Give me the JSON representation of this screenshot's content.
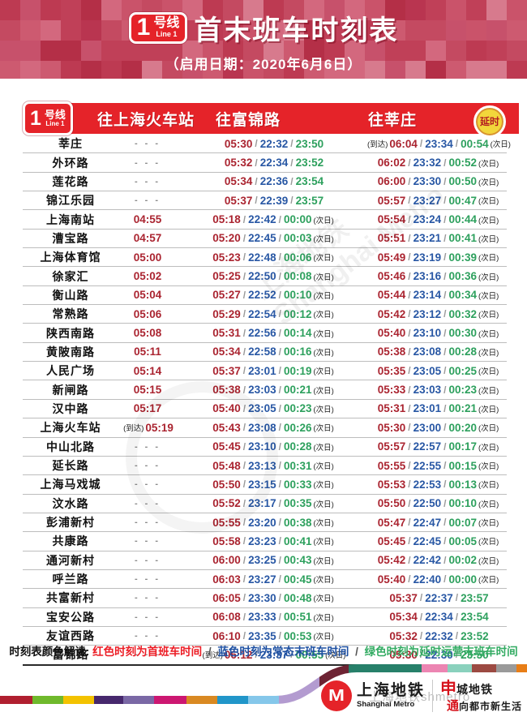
{
  "banner": {
    "line_number": "1",
    "line_suffix": "号线",
    "line_en": "Line 1",
    "title": "首末班车时刻表",
    "subtitle": "（启用日期：2020年6月6日）"
  },
  "table": {
    "directions": [
      "往上海火车站",
      "往富锦路",
      "往莘庄"
    ],
    "delay_badge": "延时",
    "arrive_label": "(到达)",
    "next_day_label": "(次日)",
    "dash": "- - -",
    "slash": "/",
    "rows": [
      {
        "station": "莘庄",
        "c1": null,
        "c2": {
          "t": [
            "05:30",
            "22:32",
            "23:50"
          ],
          "next": false
        },
        "c3": {
          "arrive": true,
          "t": [
            "06:04",
            "23:34",
            "00:54"
          ],
          "next": true
        }
      },
      {
        "station": "外环路",
        "c1": null,
        "c2": {
          "t": [
            "05:32",
            "22:34",
            "23:52"
          ],
          "next": false
        },
        "c3": {
          "t": [
            "06:02",
            "23:32",
            "00:52"
          ],
          "next": true
        }
      },
      {
        "station": "莲花路",
        "c1": null,
        "c2": {
          "t": [
            "05:34",
            "22:36",
            "23:54"
          ],
          "next": false
        },
        "c3": {
          "t": [
            "06:00",
            "23:30",
            "00:50"
          ],
          "next": true
        }
      },
      {
        "station": "锦江乐园",
        "c1": null,
        "c2": {
          "t": [
            "05:37",
            "22:39",
            "23:57"
          ],
          "next": false
        },
        "c3": {
          "t": [
            "05:57",
            "23:27",
            "00:47"
          ],
          "next": true
        }
      },
      {
        "station": "上海南站",
        "c1": {
          "t": "04:55"
        },
        "c2": {
          "t": [
            "05:18",
            "22:42",
            "00:00"
          ],
          "next": true
        },
        "c3": {
          "t": [
            "05:54",
            "23:24",
            "00:44"
          ],
          "next": true
        }
      },
      {
        "station": "漕宝路",
        "c1": {
          "t": "04:57"
        },
        "c2": {
          "t": [
            "05:20",
            "22:45",
            "00:03"
          ],
          "next": true
        },
        "c3": {
          "t": [
            "05:51",
            "23:21",
            "00:41"
          ],
          "next": true
        }
      },
      {
        "station": "上海体育馆",
        "c1": {
          "t": "05:00"
        },
        "c2": {
          "t": [
            "05:23",
            "22:48",
            "00:06"
          ],
          "next": true
        },
        "c3": {
          "t": [
            "05:49",
            "23:19",
            "00:39"
          ],
          "next": true
        }
      },
      {
        "station": "徐家汇",
        "c1": {
          "t": "05:02"
        },
        "c2": {
          "t": [
            "05:25",
            "22:50",
            "00:08"
          ],
          "next": true
        },
        "c3": {
          "t": [
            "05:46",
            "23:16",
            "00:36"
          ],
          "next": true
        }
      },
      {
        "station": "衡山路",
        "c1": {
          "t": "05:04"
        },
        "c2": {
          "t": [
            "05:27",
            "22:52",
            "00:10"
          ],
          "next": true
        },
        "c3": {
          "t": [
            "05:44",
            "23:14",
            "00:34"
          ],
          "next": true
        }
      },
      {
        "station": "常熟路",
        "c1": {
          "t": "05:06"
        },
        "c2": {
          "t": [
            "05:29",
            "22:54",
            "00:12"
          ],
          "next": true
        },
        "c3": {
          "t": [
            "05:42",
            "23:12",
            "00:32"
          ],
          "next": true
        }
      },
      {
        "station": "陕西南路",
        "c1": {
          "t": "05:08"
        },
        "c2": {
          "t": [
            "05:31",
            "22:56",
            "00:14"
          ],
          "next": true
        },
        "c3": {
          "t": [
            "05:40",
            "23:10",
            "00:30"
          ],
          "next": true
        }
      },
      {
        "station": "黄陂南路",
        "c1": {
          "t": "05:11"
        },
        "c2": {
          "t": [
            "05:34",
            "22:58",
            "00:16"
          ],
          "next": true
        },
        "c3": {
          "t": [
            "05:38",
            "23:08",
            "00:28"
          ],
          "next": true
        }
      },
      {
        "station": "人民广场",
        "c1": {
          "t": "05:14"
        },
        "c2": {
          "t": [
            "05:37",
            "23:01",
            "00:19"
          ],
          "next": true
        },
        "c3": {
          "t": [
            "05:35",
            "23:05",
            "00:25"
          ],
          "next": true
        }
      },
      {
        "station": "新闸路",
        "c1": {
          "t": "05:15"
        },
        "c2": {
          "t": [
            "05:38",
            "23:03",
            "00:21"
          ],
          "next": true
        },
        "c3": {
          "t": [
            "05:33",
            "23:03",
            "00:23"
          ],
          "next": true
        }
      },
      {
        "station": "汉中路",
        "c1": {
          "t": "05:17"
        },
        "c2": {
          "t": [
            "05:40",
            "23:05",
            "00:23"
          ],
          "next": true
        },
        "c3": {
          "t": [
            "05:31",
            "23:01",
            "00:21"
          ],
          "next": true
        }
      },
      {
        "station": "上海火车站",
        "c1": {
          "arrive": true,
          "t": "05:19"
        },
        "c2": {
          "t": [
            "05:43",
            "23:08",
            "00:26"
          ],
          "next": true
        },
        "c3": {
          "t": [
            "05:30",
            "23:00",
            "00:20"
          ],
          "next": true
        }
      },
      {
        "station": "中山北路",
        "c1": null,
        "c2": {
          "t": [
            "05:45",
            "23:10",
            "00:28"
          ],
          "next": true
        },
        "c3": {
          "t": [
            "05:57",
            "22:57",
            "00:17"
          ],
          "next": true
        }
      },
      {
        "station": "延长路",
        "c1": null,
        "c2": {
          "t": [
            "05:48",
            "23:13",
            "00:31"
          ],
          "next": true
        },
        "c3": {
          "t": [
            "05:55",
            "22:55",
            "00:15"
          ],
          "next": true
        }
      },
      {
        "station": "上海马戏城",
        "c1": null,
        "c2": {
          "t": [
            "05:50",
            "23:15",
            "00:33"
          ],
          "next": true
        },
        "c3": {
          "t": [
            "05:53",
            "22:53",
            "00:13"
          ],
          "next": true
        }
      },
      {
        "station": "汶水路",
        "c1": null,
        "c2": {
          "t": [
            "05:52",
            "23:17",
            "00:35"
          ],
          "next": true
        },
        "c3": {
          "t": [
            "05:50",
            "22:50",
            "00:10"
          ],
          "next": true
        }
      },
      {
        "station": "彭浦新村",
        "c1": null,
        "c2": {
          "t": [
            "05:55",
            "23:20",
            "00:38"
          ],
          "next": true
        },
        "c3": {
          "t": [
            "05:47",
            "22:47",
            "00:07"
          ],
          "next": true
        }
      },
      {
        "station": "共康路",
        "c1": null,
        "c2": {
          "t": [
            "05:58",
            "23:23",
            "00:41"
          ],
          "next": true
        },
        "c3": {
          "t": [
            "05:45",
            "22:45",
            "00:05"
          ],
          "next": true
        }
      },
      {
        "station": "通河新村",
        "c1": null,
        "c2": {
          "t": [
            "06:00",
            "23:25",
            "00:43"
          ],
          "next": true
        },
        "c3": {
          "t": [
            "05:42",
            "22:42",
            "00:02"
          ],
          "next": true
        }
      },
      {
        "station": "呼兰路",
        "c1": null,
        "c2": {
          "t": [
            "06:03",
            "23:27",
            "00:45"
          ],
          "next": true
        },
        "c3": {
          "t": [
            "05:40",
            "22:40",
            "00:00"
          ],
          "next": true
        }
      },
      {
        "station": "共富新村",
        "c1": null,
        "c2": {
          "t": [
            "06:05",
            "23:30",
            "00:48"
          ],
          "next": true
        },
        "c3": {
          "t": [
            "05:37",
            "22:37",
            "23:57"
          ],
          "next": false
        }
      },
      {
        "station": "宝安公路",
        "c1": null,
        "c2": {
          "t": [
            "06:08",
            "23:33",
            "00:51"
          ],
          "next": true
        },
        "c3": {
          "t": [
            "05:34",
            "22:34",
            "23:54"
          ],
          "next": false
        }
      },
      {
        "station": "友谊西路",
        "c1": null,
        "c2": {
          "t": [
            "06:10",
            "23:35",
            "00:53"
          ],
          "next": true
        },
        "c3": {
          "t": [
            "05:32",
            "22:32",
            "23:52"
          ],
          "next": false
        }
      },
      {
        "station": "富锦路",
        "c1": null,
        "c2": {
          "arrive": true,
          "t": [
            "06:12",
            "23:37",
            "00:55"
          ],
          "next": true
        },
        "c3": {
          "t": [
            "05:30",
            "22:30",
            "23:50"
          ],
          "next": false
        }
      }
    ]
  },
  "legend": {
    "prefix": "时刻表颜色解读:",
    "red": "红色时刻为首班车时间",
    "blue": "蓝色时刻为常态末班车时间",
    "green": "绿色时刻为延时运营末班车时间",
    "separator": "/"
  },
  "footer": {
    "logo_glyph": "M",
    "brand_cn": "上海地铁",
    "brand_en": "Shanghai Metro",
    "slogan1_accent": "申",
    "slogan1_rest": "城地铁",
    "slogan2_accent": "通",
    "slogan2_rest": "向都市新生活",
    "watermark": "上海地铁shmetro"
  },
  "colors": {
    "accent_red": "#e52329",
    "time_red": "#aa2430",
    "time_blue": "#2857a4",
    "time_green": "#2da05d",
    "mosaic_palette": [
      "#bd3a52",
      "#c44a61",
      "#cd5a70",
      "#b42f47",
      "#d3687e",
      "#c04058",
      "#ca536a",
      "#b93550",
      "#d77a8d",
      "#c7516b"
    ],
    "ribbon_segments": [
      {
        "end": 40,
        "color": "#b01f2f"
      },
      {
        "end": 78,
        "color": "#6fb92c"
      },
      {
        "end": 116,
        "color": "#f3c200"
      },
      {
        "end": 152,
        "color": "#46286d"
      },
      {
        "end": 190,
        "color": "#7a68a5"
      },
      {
        "end": 230,
        "color": "#cc1771"
      },
      {
        "end": 268,
        "color": "#d98922"
      },
      {
        "end": 306,
        "color": "#2196c9"
      },
      {
        "end": 344,
        "color": "#85c7ea"
      },
      {
        "end": 394,
        "color": "#b39bd0"
      },
      {
        "end": 430,
        "color": "#6d2333"
      },
      {
        "end": 520,
        "color": "#27806a"
      },
      {
        "end": 552,
        "color": "#ec85b2"
      },
      {
        "end": 582,
        "color": "#8ad1bd"
      },
      {
        "end": 612,
        "color": "#9c4a42"
      },
      {
        "end": 637,
        "color": "#9a9a9a"
      },
      {
        "end": 650,
        "color": "#e87e17"
      }
    ]
  }
}
